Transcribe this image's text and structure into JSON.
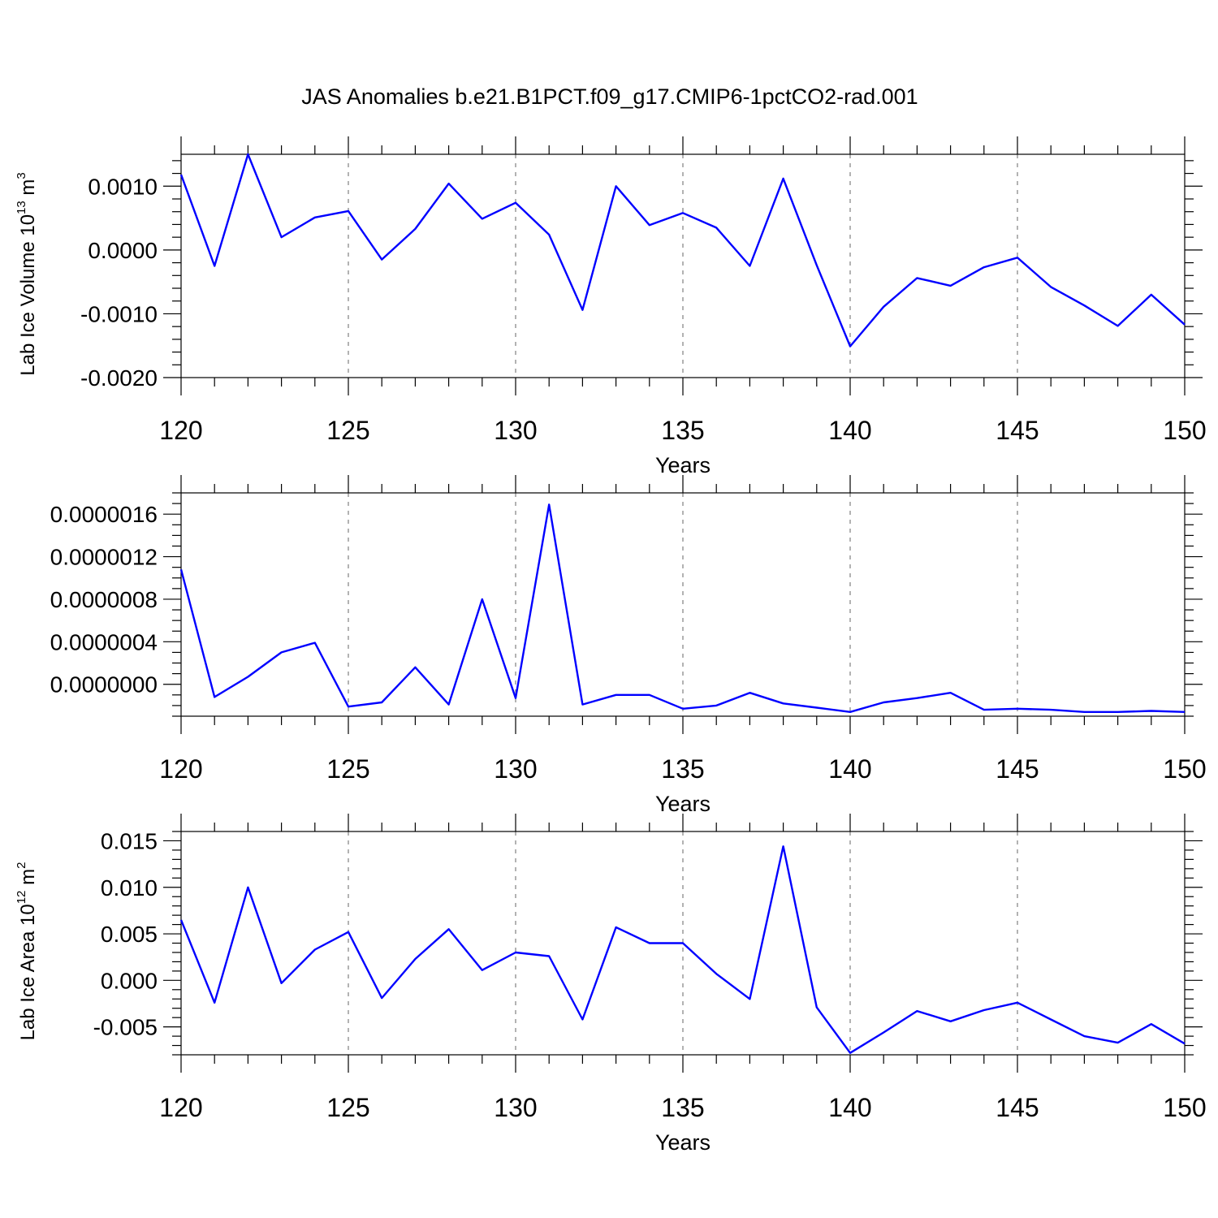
{
  "title": "JAS Anomalies b.e21.B1PCT.f09_g17.CMIP6-1pctCO2-rad.001",
  "style": {
    "line_color": "#0000ff",
    "grid_color": "#808080"
  },
  "chart_data": [
    {
      "type": "line",
      "xlabel": "Years",
      "ylabel": {
        "main": "Lab Ice Volume 10",
        "sup1": "13",
        "mid": " m",
        "sup2": "3"
      },
      "xlim": [
        120,
        150
      ],
      "ylim": [
        -0.002,
        0.0015
      ],
      "x_ticks": [
        120,
        125,
        130,
        135,
        140,
        145,
        150
      ],
      "x_tick_labels": [
        "120",
        "125",
        "130",
        "135",
        "140",
        "145",
        "150"
      ],
      "y_ticks": [
        -0.002,
        -0.001,
        0.0,
        0.001
      ],
      "y_tick_labels": [
        "-0.0020",
        "-0.0010",
        "0.0000",
        "0.0010"
      ],
      "x_minor_step": 1,
      "y_minor_step": 0.0002,
      "grid_x": true,
      "x": [
        120,
        121,
        122,
        123,
        124,
        125,
        126,
        127,
        128,
        129,
        130,
        131,
        132,
        133,
        134,
        135,
        136,
        137,
        138,
        139,
        140,
        141,
        142,
        143,
        144,
        145,
        146,
        147,
        148,
        149,
        150
      ],
      "y": [
        0.00118,
        -0.00025,
        0.0015,
        0.0002,
        0.00051,
        0.00061,
        -0.00015,
        0.00033,
        0.00104,
        0.00049,
        0.00074,
        0.00024,
        -0.00094,
        0.001,
        0.00039,
        0.00058,
        0.00035,
        -0.00025,
        0.00112,
        -0.00024,
        -0.00151,
        -0.00089,
        -0.00044,
        -0.00056,
        -0.00027,
        -0.00012,
        -0.00058,
        -0.00087,
        -0.00119,
        -0.0007,
        -0.00117
      ]
    },
    {
      "type": "line",
      "xlabel": "Years",
      "ylabel": null,
      "xlim": [
        120,
        150
      ],
      "ylim": [
        -3e-07,
        1.8e-06
      ],
      "x_ticks": [
        120,
        125,
        130,
        135,
        140,
        145,
        150
      ],
      "x_tick_labels": [
        "120",
        "125",
        "130",
        "135",
        "140",
        "145",
        "150"
      ],
      "y_ticks": [
        0.0,
        4e-07,
        8e-07,
        1.2e-06,
        1.6e-06
      ],
      "y_tick_labels": [
        "0.0000000",
        "0.0000004",
        "0.0000008",
        "0.0000012",
        "0.0000016"
      ],
      "x_minor_step": 1,
      "y_minor_step": 1e-07,
      "grid_x": true,
      "x": [
        120,
        121,
        122,
        123,
        124,
        125,
        126,
        127,
        128,
        129,
        130,
        131,
        132,
        133,
        134,
        135,
        136,
        137,
        138,
        139,
        140,
        141,
        142,
        143,
        144,
        145,
        146,
        147,
        148,
        149,
        150
      ],
      "y": [
        1.08e-06,
        -1.2e-07,
        7e-08,
        3e-07,
        3.9e-07,
        -2.1e-07,
        -1.7e-07,
        1.6e-07,
        -1.9e-07,
        8e-07,
        -1.3e-07,
        1.69e-06,
        -1.9e-07,
        -1e-07,
        -1e-07,
        -2.3e-07,
        -2e-07,
        -8e-08,
        -1.8e-07,
        -2.2e-07,
        -2.6e-07,
        -1.7e-07,
        -1.3e-07,
        -8e-08,
        -2.4e-07,
        -2.3e-07,
        -2.4e-07,
        -2.6e-07,
        -2.6e-07,
        -2.5e-07,
        -2.6e-07
      ]
    },
    {
      "type": "line",
      "xlabel": "Years",
      "ylabel": {
        "main": "Lab Ice Area 10",
        "sup1": "12",
        "mid": " m",
        "sup2": "2"
      },
      "xlim": [
        120,
        150
      ],
      "ylim": [
        -0.008,
        0.016
      ],
      "x_ticks": [
        120,
        125,
        130,
        135,
        140,
        145,
        150
      ],
      "x_tick_labels": [
        "120",
        "125",
        "130",
        "135",
        "140",
        "145",
        "150"
      ],
      "y_ticks": [
        -0.005,
        0.0,
        0.005,
        0.01,
        0.015
      ],
      "y_tick_labels": [
        "-0.005",
        "0.000",
        "0.005",
        "0.010",
        "0.015"
      ],
      "x_minor_step": 1,
      "y_minor_step": 0.001,
      "grid_x": true,
      "x": [
        120,
        121,
        122,
        123,
        124,
        125,
        126,
        127,
        128,
        129,
        130,
        131,
        132,
        133,
        134,
        135,
        136,
        137,
        138,
        139,
        140,
        141,
        142,
        143,
        144,
        145,
        146,
        147,
        148,
        149,
        150
      ],
      "y": [
        0.0065,
        -0.0024,
        0.01,
        -0.0003,
        0.0033,
        0.0052,
        -0.0019,
        0.0023,
        0.0055,
        0.0011,
        0.003,
        0.0026,
        -0.0042,
        0.0057,
        0.004,
        0.004,
        0.0007,
        -0.002,
        0.0144,
        -0.0029,
        -0.0078,
        -0.0056,
        -0.0033,
        -0.0044,
        -0.0032,
        -0.0024,
        -0.0042,
        -0.006,
        -0.0067,
        -0.0047,
        -0.0068
      ]
    }
  ]
}
